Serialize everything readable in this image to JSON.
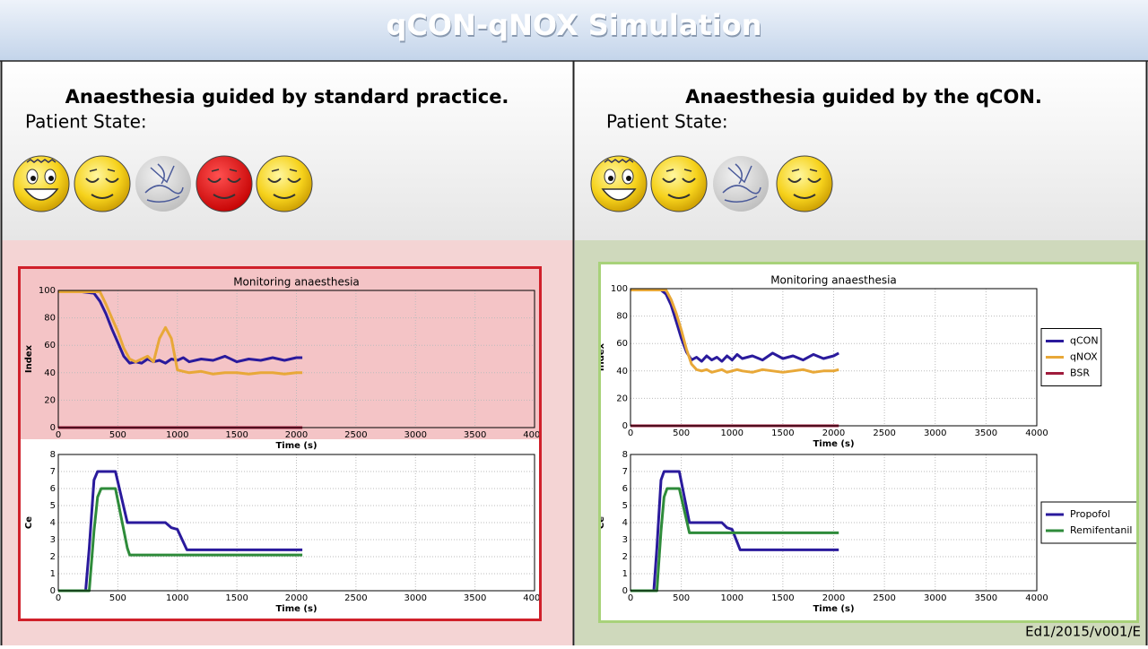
{
  "header": {
    "title": "qCON-qNOX Simulation"
  },
  "panels": [
    {
      "title": "Anaesthesia guided by standard practice.",
      "state_label": "Patient State:",
      "charts": [
        {
          "type": "line",
          "title": "Monitoring anaesthesia",
          "xlabel": "Time (s)",
          "ylabel": "Index",
          "xlim": [
            0,
            4000
          ],
          "xticks": [
            0,
            500,
            1000,
            1500,
            2000,
            2500,
            3000,
            3500,
            4000
          ],
          "ylim": [
            0,
            100
          ],
          "yticks": [
            0,
            20,
            40,
            60,
            80,
            100
          ],
          "grid": true,
          "x": [
            0,
            100,
            200,
            300,
            350,
            400,
            450,
            500,
            550,
            600,
            650,
            700,
            750,
            800,
            850,
            900,
            950,
            1000,
            1050,
            1100,
            1200,
            1300,
            1400,
            1500,
            1600,
            1700,
            1800,
            1900,
            2000,
            2050
          ],
          "series": [
            {
              "color": "#2a1a9c",
              "values": [
                99,
                99,
                99,
                98,
                92,
                83,
                72,
                62,
                52,
                47,
                48,
                47,
                50,
                48,
                49,
                47,
                50,
                49,
                51,
                48,
                50,
                49,
                52,
                48,
                50,
                49,
                51,
                49,
                51,
                51
              ]
            },
            {
              "color": "#e8a838",
              "values": [
                99,
                99,
                99,
                99,
                99,
                90,
                80,
                70,
                58,
                50,
                48,
                50,
                52,
                48,
                65,
                73,
                65,
                42,
                41,
                40,
                41,
                39,
                40,
                40,
                39,
                40,
                40,
                39,
                40,
                40
              ]
            },
            {
              "color": "#a01c3c",
              "values": [
                0,
                0,
                0,
                0,
                0,
                0,
                0,
                0,
                0,
                0,
                0,
                0,
                0,
                0,
                0,
                0,
                0,
                0,
                0,
                0,
                0,
                0,
                0,
                0,
                0,
                0,
                0,
                0,
                0,
                0
              ]
            }
          ]
        },
        {
          "type": "line",
          "xlabel": "Time (s)",
          "ylabel": "Ce",
          "xlim": [
            0,
            4000
          ],
          "xticks": [
            0,
            500,
            1000,
            1500,
            2000,
            2500,
            3000,
            3500,
            4000
          ],
          "ylim": [
            0,
            8
          ],
          "yticks": [
            0,
            1,
            2,
            3,
            4,
            5,
            6,
            7,
            8
          ],
          "grid": true,
          "x": [
            0,
            230,
            260,
            300,
            330,
            360,
            470,
            480,
            580,
            600,
            900,
            950,
            1000,
            1080,
            2050
          ],
          "series": [
            {
              "color": "#2a1a9c",
              "values": [
                0,
                0,
                2.5,
                6.5,
                7,
                7,
                7,
                7,
                4,
                4,
                4,
                3.7,
                3.6,
                2.4,
                2.4
              ]
            },
            {
              "color": "#2e8b3a",
              "values": [
                0,
                0,
                0,
                3.5,
                5.5,
                6,
                6,
                6,
                2.5,
                2.1,
                2.1,
                2.1,
                2.1,
                2.1,
                2.1
              ]
            }
          ]
        }
      ]
    },
    {
      "title": "Anaesthesia guided by the qCON.",
      "state_label": "Patient State:",
      "charts": [
        {
          "type": "line",
          "title": "Monitoring anaesthesia",
          "xlabel": "Time (s)",
          "ylabel": "Index",
          "xlim": [
            0,
            4000
          ],
          "xticks": [
            0,
            500,
            1000,
            1500,
            2000,
            2500,
            3000,
            3500,
            4000
          ],
          "ylim": [
            0,
            100
          ],
          "yticks": [
            0,
            20,
            40,
            60,
            80,
            100
          ],
          "grid": true,
          "legend": "outside right",
          "x": [
            0,
            100,
            200,
            300,
            350,
            400,
            450,
            500,
            550,
            600,
            650,
            700,
            750,
            800,
            850,
            900,
            950,
            1000,
            1050,
            1100,
            1200,
            1300,
            1400,
            1500,
            1600,
            1700,
            1800,
            1900,
            2000,
            2050
          ],
          "series": [
            {
              "name": "qCON",
              "color": "#2a1a9c",
              "values": [
                99,
                99,
                99,
                99,
                96,
                88,
                76,
                64,
                54,
                48,
                50,
                47,
                51,
                48,
                50,
                47,
                51,
                48,
                52,
                49,
                51,
                48,
                53,
                49,
                51,
                48,
                52,
                49,
                51,
                53
              ]
            },
            {
              "name": "qNOX",
              "color": "#e8a838",
              "values": [
                99,
                99,
                99,
                99,
                99,
                92,
                82,
                70,
                56,
                45,
                41,
                40,
                41,
                39,
                40,
                41,
                39,
                40,
                41,
                40,
                39,
                41,
                40,
                39,
                40,
                41,
                39,
                40,
                40,
                41
              ]
            },
            {
              "name": "BSR",
              "color": "#a01c3c",
              "values": [
                0,
                0,
                0,
                0,
                0,
                0,
                0,
                0,
                0,
                0,
                0,
                0,
                0,
                0,
                0,
                0,
                0,
                0,
                0,
                0,
                0,
                0,
                0,
                0,
                0,
                0,
                0,
                0,
                0,
                0
              ]
            }
          ]
        },
        {
          "type": "line",
          "xlabel": "Time (s)",
          "ylabel": "Ce",
          "xlim": [
            0,
            4000
          ],
          "xticks": [
            0,
            500,
            1000,
            1500,
            2000,
            2500,
            3000,
            3500,
            4000
          ],
          "ylim": [
            0,
            8
          ],
          "yticks": [
            0,
            1,
            2,
            3,
            4,
            5,
            6,
            7,
            8
          ],
          "grid": true,
          "legend": "outside right",
          "x": [
            0,
            230,
            260,
            300,
            330,
            360,
            470,
            480,
            580,
            600,
            900,
            950,
            1000,
            1080,
            2050
          ],
          "series": [
            {
              "name": "Propofol",
              "color": "#2a1a9c",
              "values": [
                0,
                0,
                2.5,
                6.5,
                7,
                7,
                7,
                7,
                4,
                4,
                4,
                3.7,
                3.6,
                2.4,
                2.4
              ]
            },
            {
              "name": "Remifentanil",
              "color": "#2e8b3a",
              "values": [
                0,
                0,
                0,
                3.5,
                5.5,
                6,
                6,
                6,
                3.4,
                3.4,
                3.4,
                3.4,
                3.4,
                3.4,
                3.4
              ]
            }
          ]
        }
      ]
    }
  ],
  "footer": {
    "text": "Ed1/2015/v001/E"
  }
}
